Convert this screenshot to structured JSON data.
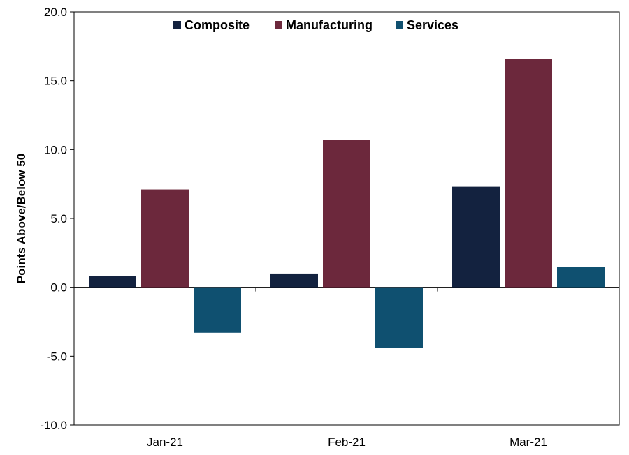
{
  "chart_data": {
    "type": "bar",
    "categories": [
      "Jan-21",
      "Feb-21",
      "Mar-21"
    ],
    "series": [
      {
        "name": "Composite",
        "color": "#13223f",
        "values": [
          0.8,
          1.0,
          7.3
        ]
      },
      {
        "name": "Manufacturing",
        "color": "#6c283c",
        "values": [
          7.1,
          10.7,
          16.6
        ]
      },
      {
        "name": "Services",
        "color": "#0f5070",
        "values": [
          -3.3,
          -4.4,
          1.5
        ]
      }
    ],
    "ylabel": "Points Above/Below 50",
    "xlabel": "",
    "title": "",
    "ylim": [
      -10,
      20
    ],
    "yticks": [
      "-10.0",
      "-5.0",
      "0.0",
      "5.0",
      "10.0",
      "15.0",
      "20.0"
    ],
    "grid": false,
    "legend_position": "top"
  }
}
